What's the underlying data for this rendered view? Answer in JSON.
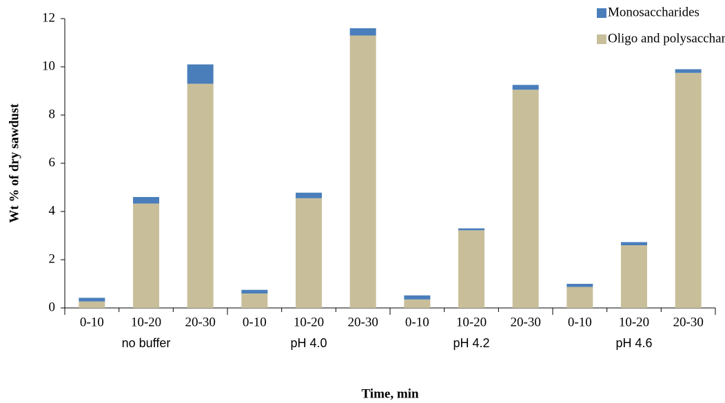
{
  "chart_data": {
    "type": "stacked-bar",
    "y_label": "Wt % of dry sawdust",
    "x_label": "Time, min",
    "categories": [
      "0-10",
      "10-20",
      "20-30",
      "0-10",
      "10-20",
      "20-30",
      "0-10",
      "10-20",
      "20-30",
      "0-10",
      "10-20",
      "20-30"
    ],
    "groups": [
      "no buffer",
      "pH 4.0",
      "pH 4.2",
      "pH 4.6"
    ],
    "series": [
      {
        "name": "Monosaccharides",
        "color": "#4a7ebb",
        "values": [
          0.15,
          0.27,
          0.8,
          0.15,
          0.23,
          0.3,
          0.17,
          0.08,
          0.2,
          0.13,
          0.13,
          0.15
        ]
      },
      {
        "name": "Oligo and polysaccharides",
        "color": "#c8bf9a",
        "values": [
          0.27,
          4.33,
          9.3,
          0.6,
          4.55,
          11.3,
          0.35,
          3.22,
          9.05,
          0.87,
          2.6,
          9.75
        ]
      }
    ],
    "ylim": [
      0,
      12
    ],
    "yticks": [
      0,
      2,
      4,
      6,
      8,
      10,
      12
    ],
    "legend": "top-right"
  }
}
